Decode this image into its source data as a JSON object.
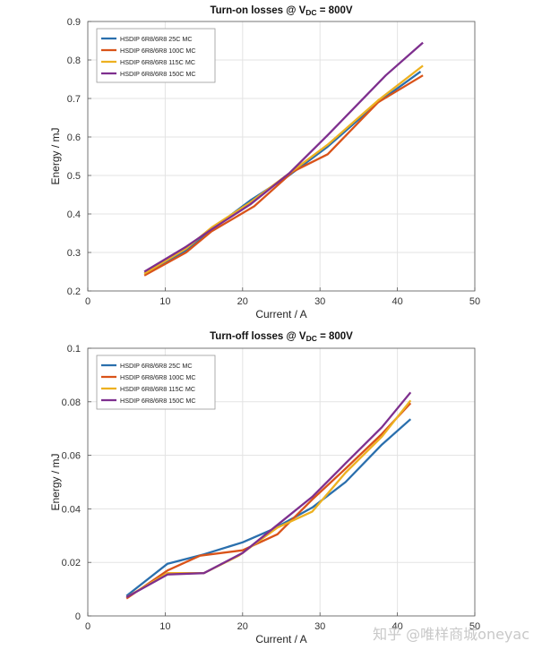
{
  "chart_data": [
    {
      "type": "line",
      "title": "Turn-on losses @ V",
      "title_sub": "DC",
      "title_tail": " = 800V",
      "xlabel": "Current / A",
      "ylabel": "Energy / mJ",
      "xlim": [
        0,
        50
      ],
      "ylim": [
        0.2,
        0.9
      ],
      "xticks": [
        0,
        10,
        20,
        30,
        40,
        50
      ],
      "yticks": [
        0.2,
        0.3,
        0.4,
        0.5,
        0.6,
        0.7,
        0.8,
        0.9
      ],
      "ytick_labels": [
        "0.2",
        "0.3",
        "0.4",
        "0.5",
        "0.6",
        "0.7",
        "0.8",
        "0.9"
      ],
      "grid": true,
      "legend": "top-left",
      "series": [
        {
          "name": "HSDIP 6R8/6R8 25C MC",
          "color": "#2a6fad",
          "x": [
            7.3,
            12.7,
            16,
            21,
            26,
            31,
            37.5,
            43
          ],
          "y": [
            0.245,
            0.305,
            0.36,
            0.435,
            0.5,
            0.575,
            0.69,
            0.77
          ]
        },
        {
          "name": "HSDIP 6R8/6R8 100C MC",
          "color": "#d95319",
          "x": [
            7.3,
            12.7,
            16,
            21.5,
            26.5,
            31,
            37.5,
            43.3
          ],
          "y": [
            0.24,
            0.3,
            0.355,
            0.42,
            0.51,
            0.555,
            0.69,
            0.76
          ]
        },
        {
          "name": "HSDIP 6R8/6R8 115C MC",
          "color": "#edb120",
          "x": [
            7.3,
            12.7,
            16,
            21,
            26,
            31,
            37.5,
            43.3
          ],
          "y": [
            0.245,
            0.31,
            0.365,
            0.43,
            0.505,
            0.58,
            0.695,
            0.785
          ]
        },
        {
          "name": "HSDIP 6R8/6R8 150C MC",
          "color": "#7e2f8e",
          "x": [
            7.3,
            12.7,
            16,
            21,
            26,
            31,
            38.5,
            43.3
          ],
          "y": [
            0.25,
            0.315,
            0.36,
            0.425,
            0.505,
            0.605,
            0.76,
            0.845
          ]
        }
      ]
    },
    {
      "type": "line",
      "title": "Turn-off losses @ V",
      "title_sub": "DC",
      "title_tail": " = 800V",
      "xlabel": "Current / A",
      "ylabel": "Energy / mJ",
      "xlim": [
        0,
        50
      ],
      "ylim": [
        0,
        0.1
      ],
      "xticks": [
        0,
        10,
        20,
        30,
        40,
        50
      ],
      "yticks": [
        0,
        0.02,
        0.04,
        0.06,
        0.08,
        0.1
      ],
      "ytick_labels": [
        "0",
        "0.02",
        "0.04",
        "0.06",
        "0.08",
        "0.1"
      ],
      "grid": true,
      "legend": "top-left",
      "series": [
        {
          "name": "HSDIP 6R8/6R8 25C MC",
          "color": "#2a6fad",
          "x": [
            5,
            10.3,
            15,
            20,
            24,
            29,
            33.3,
            38,
            41.7
          ],
          "y": [
            0.0075,
            0.0195,
            0.023,
            0.0275,
            0.0325,
            0.0405,
            0.05,
            0.064,
            0.0735
          ]
        },
        {
          "name": "HSDIP 6R8/6R8 100C MC",
          "color": "#d95319",
          "x": [
            5,
            10.3,
            14.5,
            20,
            24.5,
            29,
            33.3,
            38,
            41.7
          ],
          "y": [
            0.0065,
            0.017,
            0.0225,
            0.0245,
            0.0305,
            0.0435,
            0.055,
            0.068,
            0.0795
          ]
        },
        {
          "name": "HSDIP 6R8/6R8 115C MC",
          "color": "#edb120",
          "x": [
            5,
            10.3,
            15,
            19.5,
            24.5,
            29,
            33.3,
            38,
            41.7
          ],
          "y": [
            0.007,
            0.016,
            0.016,
            0.0225,
            0.033,
            0.039,
            0.0535,
            0.067,
            0.0805
          ]
        },
        {
          "name": "HSDIP 6R8/6R8 150C MC",
          "color": "#7e2f8e",
          "x": [
            5,
            10.3,
            15,
            20,
            24.5,
            29,
            33.3,
            38,
            41.7
          ],
          "y": [
            0.007,
            0.0155,
            0.016,
            0.0235,
            0.034,
            0.0445,
            0.057,
            0.0705,
            0.0835
          ]
        }
      ]
    }
  ],
  "watermark": "知乎 @唯样商城oneyac"
}
